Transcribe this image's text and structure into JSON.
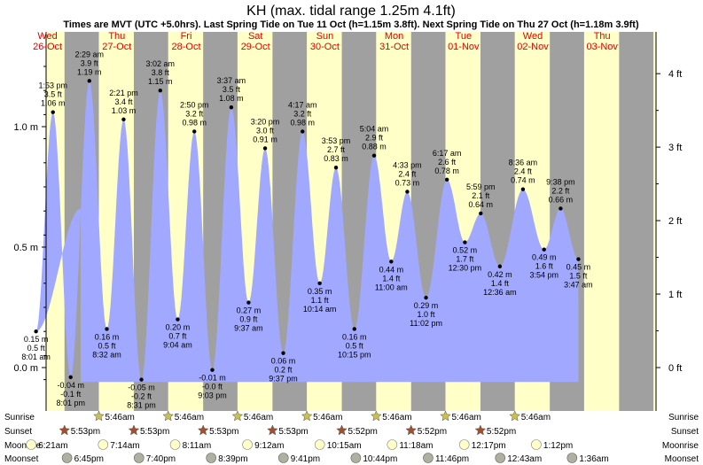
{
  "header": {
    "title": "KH (max. tidal range 1.25m 4.1ft)",
    "subtitle": "Times are MVT (UTC +5.0hrs). Last Spring Tide on Tue 11 Oct (h=1.15m 3.8ft). Next Spring Tide on Thu 27 Oct (h=1.18m 3.9ft)"
  },
  "colors": {
    "day": "#ffffc8",
    "night": "#a0a0a0",
    "water": "#a0a8ff",
    "day_label": "#e00000",
    "sun_star": "#c8c050",
    "sunset_star": "#a05030",
    "moon_full": "#ffffc8",
    "moon_dark": "#b0b0a0"
  },
  "days": [
    {
      "wd": "Wed",
      "date": "26-Oct"
    },
    {
      "wd": "Thu",
      "date": "27-Oct"
    },
    {
      "wd": "Fri",
      "date": "28-Oct"
    },
    {
      "wd": "Sat",
      "date": "29-Oct"
    },
    {
      "wd": "Sun",
      "date": "30-Oct"
    },
    {
      "wd": "Mon",
      "date": "31-Oct"
    },
    {
      "wd": "Tue",
      "date": "01-Nov"
    },
    {
      "wd": "Wed",
      "date": "02-Nov"
    },
    {
      "wd": "Thu",
      "date": "03-Nov"
    }
  ],
  "rows": {
    "sunrise": "Sunrise",
    "sunset": "Sunset",
    "moonrise": "Moonrise",
    "moonset": "Moonset"
  },
  "chart_data": {
    "type": "area",
    "title": "KH (max. tidal range 1.25m 4.1ft)",
    "y_left_ticks": [
      {
        "v": 0.0,
        "label": "0.0 m"
      },
      {
        "v": 0.5,
        "label": "0.5 m"
      },
      {
        "v": 1.0,
        "label": "1.0 m"
      }
    ],
    "y_right_ticks": [
      {
        "v": 0.0,
        "label": "0 ft"
      },
      {
        "v": 0.305,
        "label": "1 ft"
      },
      {
        "v": 0.61,
        "label": "2 ft"
      },
      {
        "v": 0.915,
        "label": "3 ft"
      },
      {
        "v": 1.22,
        "label": "4 ft"
      }
    ],
    "ylim": [
      -0.06,
      1.28
    ],
    "tides": [
      {
        "d": 0,
        "t": "8:01 am",
        "h": 0.15,
        "ft": "0.5 ft",
        "m": "0.15 m",
        "type": "low"
      },
      {
        "d": 0,
        "t": "1:53 pm",
        "h": 1.06,
        "ft": "3.5 ft",
        "m": "1.06 m",
        "type": "high"
      },
      {
        "d": 0,
        "t": "8:01 pm",
        "h": -0.04,
        "ft": "-0.1 ft",
        "m": "-0.04 m",
        "type": "low"
      },
      {
        "d": 1,
        "t": "2:29 am",
        "h": 1.19,
        "ft": "3.9 ft",
        "m": "1.19 m",
        "type": "high"
      },
      {
        "d": 1,
        "t": "8:32 am",
        "h": 0.16,
        "ft": "0.5 ft",
        "m": "0.16 m",
        "type": "low"
      },
      {
        "d": 1,
        "t": "2:21 pm",
        "h": 1.03,
        "ft": "3.4 ft",
        "m": "1.03 m",
        "type": "high"
      },
      {
        "d": 1,
        "t": "8:31 pm",
        "h": -0.05,
        "ft": "-0.2 ft",
        "m": "-0.05 m",
        "type": "low"
      },
      {
        "d": 2,
        "t": "3:02 am",
        "h": 1.15,
        "ft": "3.8 ft",
        "m": "1.15 m",
        "type": "high"
      },
      {
        "d": 2,
        "t": "9:04 am",
        "h": 0.2,
        "ft": "0.7 ft",
        "m": "0.20 m",
        "type": "low"
      },
      {
        "d": 2,
        "t": "2:50 pm",
        "h": 0.98,
        "ft": "3.2 ft",
        "m": "0.98 m",
        "type": "high"
      },
      {
        "d": 2,
        "t": "9:03 pm",
        "h": -0.01,
        "ft": "-0.0 ft",
        "m": "-0.01 m",
        "type": "low"
      },
      {
        "d": 3,
        "t": "3:37 am",
        "h": 1.08,
        "ft": "3.5 ft",
        "m": "1.08 m",
        "type": "high"
      },
      {
        "d": 3,
        "t": "9:37 am",
        "h": 0.27,
        "ft": "0.9 ft",
        "m": "0.27 m",
        "type": "low"
      },
      {
        "d": 3,
        "t": "3:20 pm",
        "h": 0.91,
        "ft": "3.0 ft",
        "m": "0.91 m",
        "type": "high"
      },
      {
        "d": 3,
        "t": "9:37 pm",
        "h": 0.06,
        "ft": "0.2 ft",
        "m": "0.06 m",
        "type": "low"
      },
      {
        "d": 4,
        "t": "4:17 am",
        "h": 0.98,
        "ft": "3.2 ft",
        "m": "0.98 m",
        "type": "high"
      },
      {
        "d": 4,
        "t": "10:14 am",
        "h": 0.35,
        "ft": "1.1 ft",
        "m": "0.35 m",
        "type": "low"
      },
      {
        "d": 4,
        "t": "3:53 pm",
        "h": 0.83,
        "ft": "2.7 ft",
        "m": "0.83 m",
        "type": "high"
      },
      {
        "d": 4,
        "t": "10:15 pm",
        "h": 0.16,
        "ft": "0.5 ft",
        "m": "0.16 m",
        "type": "low"
      },
      {
        "d": 5,
        "t": "5:04 am",
        "h": 0.88,
        "ft": "2.9 ft",
        "m": "0.88 m",
        "type": "high"
      },
      {
        "d": 5,
        "t": "11:00 am",
        "h": 0.44,
        "ft": "1.4 ft",
        "m": "0.44 m",
        "type": "low"
      },
      {
        "d": 5,
        "t": "4:33 pm",
        "h": 0.73,
        "ft": "2.4 ft",
        "m": "0.73 m",
        "type": "high"
      },
      {
        "d": 5,
        "t": "11:02 pm",
        "h": 0.29,
        "ft": "1.0 ft",
        "m": "0.29 m",
        "type": "low"
      },
      {
        "d": 6,
        "t": "6:17 am",
        "h": 0.78,
        "ft": "2.6 ft",
        "m": "0.78 m",
        "type": "high"
      },
      {
        "d": 6,
        "t": "12:30 pm",
        "h": 0.52,
        "ft": "1.7 ft",
        "m": "0.52 m",
        "type": "low"
      },
      {
        "d": 6,
        "t": "5:59 pm",
        "h": 0.64,
        "ft": "2.1 ft",
        "m": "0.64 m",
        "type": "high"
      },
      {
        "d": 7,
        "t": "12:36 am",
        "h": 0.42,
        "ft": "1.4 ft",
        "m": "0.42 m",
        "type": "low"
      },
      {
        "d": 7,
        "t": "8:36 am",
        "h": 0.74,
        "ft": "2.4 ft",
        "m": "0.74 m",
        "type": "high"
      },
      {
        "d": 7,
        "t": "3:54 pm",
        "h": 0.49,
        "ft": "1.6 ft",
        "m": "0.49 m",
        "type": "low"
      },
      {
        "d": 7,
        "t": "9:38 pm",
        "h": 0.66,
        "ft": "2.2 ft",
        "m": "0.66 m",
        "type": "high"
      },
      {
        "d": 8,
        "t": "3:47 am",
        "h": 0.45,
        "ft": "1.5 ft",
        "m": "0.45 m",
        "type": "low"
      }
    ],
    "sunrise": [
      "5:46am",
      "5:46am",
      "5:46am",
      "5:46am",
      "5:46am",
      "5:46am",
      "5:46am"
    ],
    "sunset": [
      "5:53pm",
      "5:53pm",
      "5:53pm",
      "5:53pm",
      "5:52pm",
      "5:52pm",
      "5:52pm"
    ],
    "moonrise": [
      {
        "d": 0,
        "t": "6:21am"
      },
      {
        "d": 1,
        "t": "7:14am"
      },
      {
        "d": 2,
        "t": "8:11am"
      },
      {
        "d": 3,
        "t": "9:12am"
      },
      {
        "d": 4,
        "t": "10:15am"
      },
      {
        "d": 5,
        "t": "11:18am"
      },
      {
        "d": 6,
        "t": "12:17pm"
      },
      {
        "d": 7,
        "t": "1:12pm"
      }
    ],
    "moonset": [
      {
        "d": 0,
        "t": "6:45pm"
      },
      {
        "d": 1,
        "t": "7:40pm"
      },
      {
        "d": 2,
        "t": "8:39pm"
      },
      {
        "d": 3,
        "t": "9:41pm"
      },
      {
        "d": 4,
        "t": "10:44pm"
      },
      {
        "d": 5,
        "t": "11:46pm"
      },
      {
        "d": 7,
        "t": "12:43am"
      },
      {
        "d": 8,
        "t": "1:36am"
      }
    ]
  }
}
